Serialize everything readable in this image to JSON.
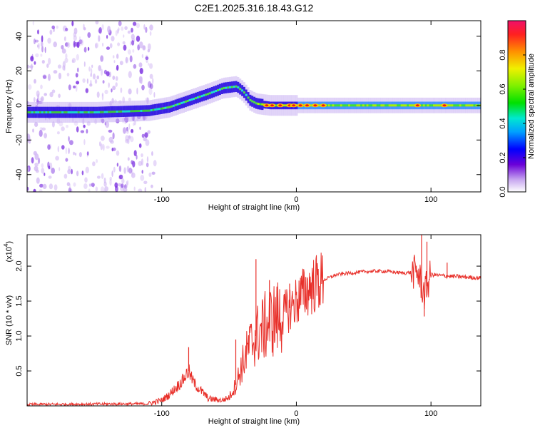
{
  "figure_title": "C2E1.2025.316.18.43.G12",
  "chart_data": [
    {
      "type": "heatmap",
      "title": "C2E1.2025.316.18.43.G12",
      "xlabel": "Height of straight line (km)",
      "ylabel": "Frequency (Hz)",
      "xlim": [
        -200,
        137
      ],
      "ylim": [
        -50,
        49
      ],
      "xticks": [
        -100,
        0,
        100
      ],
      "xtick_labels": [
        "-100",
        "0",
        "100"
      ],
      "yticks": [
        -40,
        -20,
        0,
        20,
        40
      ],
      "ytick_labels": [
        "-40",
        "-20",
        "0",
        "20",
        "40"
      ],
      "ridge": {
        "description": "spectral ridge centre frequency versus height",
        "x": [
          -200,
          -150,
          -110,
          -95,
          -80,
          -65,
          -55,
          -45,
          -40,
          -35,
          -30,
          -20,
          0,
          50,
          100,
          137
        ],
        "y": [
          -4,
          -4,
          -3,
          -1,
          3,
          7,
          10,
          11,
          8,
          3,
          1,
          0,
          0,
          0,
          0,
          0
        ]
      },
      "colorbar": {
        "label": "Normalized spectral amplitude",
        "ticks": [
          0.0,
          0.2,
          0.4,
          0.6,
          0.8
        ],
        "tick_labels": [
          "0.0",
          "0.2",
          "0.4",
          "0.6",
          "0.8"
        ],
        "range": [
          0,
          1
        ]
      }
    },
    {
      "type": "line",
      "xlabel": "Height of straight line (km)",
      "ylabel": "SNR (10 * v/v)",
      "scale_label": "(x10",
      "scale_exponent": "4",
      "scale_close": ")",
      "xlim": [
        -200,
        137
      ],
      "ylim": [
        0,
        2.45
      ],
      "xticks": [
        -100,
        0,
        100
      ],
      "xtick_labels": [
        "-100",
        "0",
        "100"
      ],
      "yticks": [
        0.5,
        1.0,
        1.5,
        2.0
      ],
      "ytick_labels": [
        "0.5",
        "1.0",
        "1.5",
        "2.0"
      ],
      "series": [
        {
          "name": "SNR",
          "color": "#e8302a",
          "envelope_x": [
            -200,
            -110,
            -100,
            -95,
            -90,
            -85,
            -80,
            -78,
            -75,
            -70,
            -65,
            -55,
            -50,
            -45,
            -40,
            -35,
            -30,
            -25,
            -20,
            -15,
            -10,
            -5,
            0,
            5,
            10,
            20,
            30,
            40,
            50,
            60,
            70,
            80,
            90,
            95,
            100,
            110,
            120,
            137
          ],
          "envelope_y": [
            0.02,
            0.03,
            0.08,
            0.15,
            0.25,
            0.35,
            0.5,
            0.4,
            0.3,
            0.2,
            0.1,
            0.08,
            0.12,
            0.3,
            0.6,
            0.85,
            1.0,
            1.1,
            1.2,
            1.25,
            1.3,
            1.4,
            1.5,
            1.6,
            1.7,
            1.8,
            1.88,
            1.9,
            1.92,
            1.93,
            1.92,
            1.9,
            1.92,
            1.6,
            1.88,
            1.86,
            1.85,
            1.83
          ],
          "spikes": [
            {
              "x": -80,
              "y": 0.84
            },
            {
              "x": -45,
              "y": 0.95
            },
            {
              "x": -30,
              "y": 2.1
            },
            {
              "x": -20,
              "y": 1.8
            },
            {
              "x": -5,
              "y": 1.75
            },
            {
              "x": 93,
              "y": 2.45
            },
            {
              "x": 95,
              "y": 1.28
            },
            {
              "x": 97,
              "y": 2.35
            },
            {
              "x": 112,
              "y": 2.05
            }
          ]
        }
      ]
    }
  ]
}
